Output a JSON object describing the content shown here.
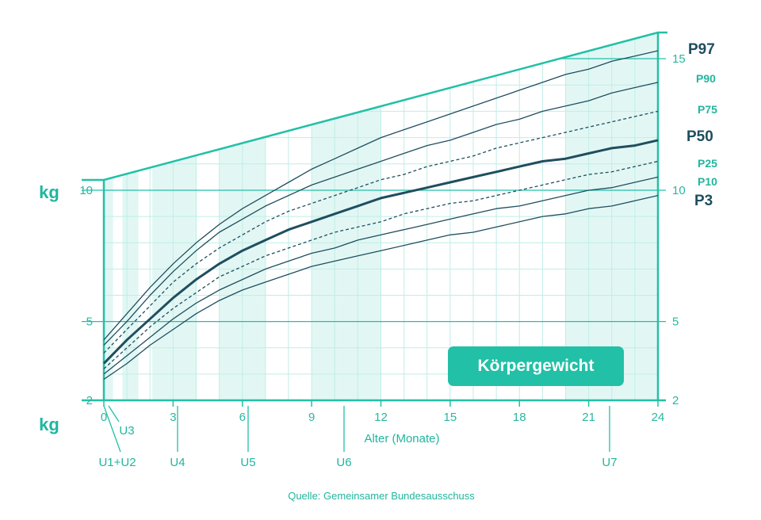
{
  "colors": {
    "accent": "#22c0a6",
    "grid": "#bfeee6",
    "band": "#e2f7f4",
    "curve": "#1f4e5f"
  },
  "chart_data": {
    "type": "line",
    "title": "Körpergewicht",
    "xlabel": "Alter (Monate)",
    "ylabel": "kg",
    "xlim": [
      0,
      24
    ],
    "ylim": [
      2,
      15.5
    ],
    "xticks": [
      0,
      3,
      6,
      9,
      12,
      15,
      18,
      21,
      24
    ],
    "yticks_left": [
      2,
      5,
      10
    ],
    "yticks_right": [
      2,
      5,
      10,
      15
    ],
    "x": [
      0,
      1,
      2,
      3,
      4,
      5,
      6,
      7,
      8,
      9,
      10,
      11,
      12,
      13,
      14,
      15,
      16,
      17,
      18,
      19,
      20,
      21,
      22,
      23,
      24
    ],
    "series": [
      {
        "name": "P97",
        "style": "solid",
        "weight": "thin",
        "values": [
          4.3,
          5.3,
          6.3,
          7.2,
          8.0,
          8.7,
          9.3,
          9.8,
          10.3,
          10.8,
          11.2,
          11.6,
          12.0,
          12.3,
          12.6,
          12.9,
          13.2,
          13.5,
          13.8,
          14.1,
          14.4,
          14.6,
          14.9,
          15.1,
          15.3
        ]
      },
      {
        "name": "P90",
        "style": "solid",
        "weight": "thin",
        "values": [
          4.1,
          5.0,
          6.0,
          6.9,
          7.7,
          8.4,
          8.9,
          9.4,
          9.8,
          10.2,
          10.5,
          10.8,
          11.1,
          11.4,
          11.7,
          11.9,
          12.2,
          12.5,
          12.7,
          13.0,
          13.2,
          13.4,
          13.7,
          13.9,
          14.1
        ]
      },
      {
        "name": "P75",
        "style": "dashed",
        "weight": "thin",
        "values": [
          3.8,
          4.7,
          5.6,
          6.5,
          7.2,
          7.8,
          8.3,
          8.8,
          9.2,
          9.5,
          9.8,
          10.1,
          10.4,
          10.6,
          10.9,
          11.1,
          11.3,
          11.6,
          11.8,
          12.0,
          12.2,
          12.4,
          12.6,
          12.8,
          13.0
        ]
      },
      {
        "name": "P50",
        "style": "solid",
        "weight": "bold",
        "values": [
          3.4,
          4.3,
          5.1,
          5.9,
          6.6,
          7.2,
          7.7,
          8.1,
          8.5,
          8.8,
          9.1,
          9.4,
          9.7,
          9.9,
          10.1,
          10.3,
          10.5,
          10.7,
          10.9,
          11.1,
          11.2,
          11.4,
          11.6,
          11.7,
          11.9
        ]
      },
      {
        "name": "P25",
        "style": "dashed",
        "weight": "thin",
        "values": [
          3.2,
          4.0,
          4.8,
          5.5,
          6.1,
          6.7,
          7.1,
          7.5,
          7.8,
          8.1,
          8.4,
          8.6,
          8.8,
          9.1,
          9.3,
          9.5,
          9.6,
          9.8,
          10.0,
          10.2,
          10.4,
          10.6,
          10.7,
          10.9,
          11.1
        ]
      },
      {
        "name": "P10",
        "style": "solid",
        "weight": "thin",
        "values": [
          3.0,
          3.7,
          4.4,
          5.1,
          5.7,
          6.2,
          6.6,
          7.0,
          7.3,
          7.6,
          7.8,
          8.1,
          8.3,
          8.5,
          8.7,
          8.9,
          9.1,
          9.3,
          9.4,
          9.6,
          9.8,
          10.0,
          10.1,
          10.3,
          10.5
        ]
      },
      {
        "name": "P3",
        "style": "solid",
        "weight": "thin",
        "values": [
          2.8,
          3.4,
          4.1,
          4.7,
          5.3,
          5.8,
          6.2,
          6.5,
          6.8,
          7.1,
          7.3,
          7.5,
          7.7,
          7.9,
          8.1,
          8.3,
          8.4,
          8.6,
          8.8,
          9.0,
          9.1,
          9.3,
          9.4,
          9.6,
          9.8
        ]
      }
    ],
    "checkups": [
      {
        "label": "U1+U2",
        "x": 0.3,
        "band": [
          0.0,
          0.4
        ]
      },
      {
        "label": "U3",
        "x": 1.0,
        "band": [
          0.8,
          1.5
        ]
      },
      {
        "label": "U4",
        "x": 3.2,
        "band": [
          2.1,
          4.0
        ]
      },
      {
        "label": "U5",
        "x": 6.3,
        "band": [
          5.0,
          7.0
        ]
      },
      {
        "label": "U6",
        "x": 10.5,
        "band": [
          9.0,
          12.0
        ]
      },
      {
        "label": "U7",
        "x": 21.8,
        "band": [
          20.0,
          24.0
        ]
      }
    ],
    "source": "Quelle: Gemeinsamer Bundesausschuss"
  }
}
